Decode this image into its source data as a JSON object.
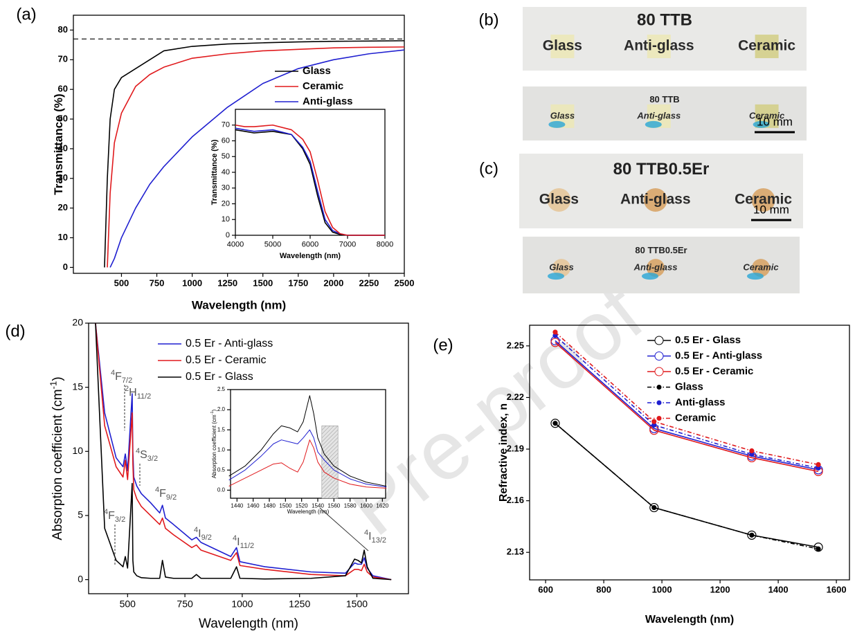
{
  "watermark": "Pre-proof",
  "chart_data": [
    {
      "type": "line",
      "panel": "(a)",
      "xlabel": "Wavelength (nm)",
      "ylabel": "Transmittance (%)",
      "xlim": [
        160,
        2500
      ],
      "ylim": [
        -2,
        85
      ],
      "xticks": [
        500,
        750,
        1000,
        1250,
        1500,
        1750,
        2000,
        2250,
        2500
      ],
      "yticks": [
        0,
        10,
        20,
        30,
        40,
        50,
        60,
        70,
        80
      ],
      "ref_line": 77,
      "legend": true,
      "x": [
        380,
        400,
        420,
        450,
        500,
        600,
        700,
        800,
        1000,
        1250,
        1500,
        1750,
        2000,
        2250,
        2500
      ],
      "series": [
        {
          "name": "Glass",
          "color": "#000000",
          "values": [
            0,
            30,
            50,
            60,
            64,
            67,
            70,
            73,
            74.5,
            75.3,
            75.7,
            76,
            76.2,
            76.3,
            76.4
          ]
        },
        {
          "name": "Ceramic",
          "color": "#e0191c",
          "values": [
            null,
            0,
            25,
            42,
            52,
            61,
            65,
            67.5,
            70.5,
            72,
            73,
            73.5,
            74,
            74.2,
            74.3
          ]
        },
        {
          "name": "Anti-glass",
          "color": "#1f1fd0",
          "values": [
            null,
            null,
            0,
            3,
            10,
            20,
            28,
            34,
            44,
            54,
            62,
            67,
            70,
            72,
            73.3
          ]
        }
      ]
    },
    {
      "type": "line",
      "xlabel": "Wavelength (nm)",
      "ylabel": "Transmittance (%)",
      "xlim": [
        4000,
        8000
      ],
      "ylim": [
        0,
        80
      ],
      "xticks": [
        4000,
        5000,
        6000,
        7000,
        8000
      ],
      "yticks": [
        0,
        10,
        20,
        30,
        40,
        50,
        60,
        70
      ],
      "x": [
        4000,
        4250,
        4500,
        5000,
        5500,
        5800,
        6000,
        6200,
        6400,
        6600,
        6800,
        7000,
        8000
      ],
      "series": [
        {
          "color": "#000000",
          "values": [
            67,
            66,
            65,
            66,
            64,
            55,
            45,
            25,
            8,
            2,
            0.5,
            0,
            0
          ]
        },
        {
          "color": "#1f1fd0",
          "values": [
            68,
            67,
            66,
            67,
            64,
            56,
            47,
            28,
            10,
            3,
            1,
            0,
            0
          ]
        },
        {
          "color": "#e0191c",
          "values": [
            70,
            69,
            69,
            70,
            67,
            61,
            53,
            35,
            15,
            5,
            1,
            0,
            0
          ]
        }
      ]
    },
    {
      "type": "line",
      "panel": "(d)",
      "xlabel": "Wavelength (nm)",
      "ylabel": "Absorption coefficient (cm",
      "ylabel_sup": "-1",
      "ylabel_end": ")",
      "xlim": [
        330,
        1725
      ],
      "ylim": [
        -1.1,
        20
      ],
      "xticks": [
        500,
        750,
        1000,
        1250,
        1500
      ],
      "yticks": [
        0,
        5,
        10,
        15,
        20
      ],
      "legend": true,
      "x": [
        360,
        400,
        450,
        480,
        490,
        500,
        520,
        523,
        527,
        540,
        560,
        600,
        640,
        652,
        665,
        700,
        780,
        800,
        820,
        950,
        975,
        990,
        1100,
        1300,
        1450,
        1490,
        1505,
        1520,
        1532,
        1545,
        1570,
        1650
      ],
      "series": [
        {
          "name": "0.5 Er - Anti-glass",
          "color": "#1f1fd0",
          "values": [
            20,
            13,
            9.5,
            8.8,
            9.8,
            8.5,
            14.5,
            10,
            8,
            7.3,
            6.7,
            6,
            5.2,
            5.8,
            4.8,
            4.3,
            3.1,
            3.3,
            2.9,
            1.8,
            2.5,
            1.4,
            1.0,
            0.6,
            0.5,
            1.3,
            1.2,
            1.2,
            1.7,
            0.9,
            0.3,
            0
          ]
        },
        {
          "name": "0.5 Er - Ceramic",
          "color": "#e0191c",
          "values": [
            20,
            12,
            8.8,
            8.0,
            9.3,
            7.8,
            13,
            9,
            7,
            6.3,
            5.7,
            5,
            4.3,
            4.8,
            4.0,
            3.5,
            2.5,
            2.7,
            2.3,
            1.5,
            2.1,
            1.1,
            0.8,
            0.4,
            0.3,
            0.8,
            0.8,
            0.7,
            1.2,
            0.6,
            0.2,
            0
          ]
        },
        {
          "name": "0.5 Er - Glass",
          "color": "#000000",
          "values": [
            20,
            4,
            1.5,
            1,
            1.8,
            0.9,
            7.5,
            1.5,
            0.6,
            0.3,
            0.15,
            0.1,
            0.1,
            1.5,
            0.2,
            0.1,
            0.1,
            0.4,
            0.1,
            0.1,
            1.0,
            0.1,
            0.05,
            0.1,
            0.3,
            1.6,
            1.5,
            1.3,
            2.3,
            1.0,
            0.1,
            0
          ]
        }
      ],
      "annotations": [
        {
          "sup": "4",
          "main": "F",
          "sub": "7/2"
        },
        {
          "sup": "2",
          "main": "H",
          "sub": "11/2"
        },
        {
          "sup": "4",
          "main": "S",
          "sub": "3/2"
        },
        {
          "sup": "4",
          "main": "F",
          "sub": "9/2"
        },
        {
          "sup": "4",
          "main": "F",
          "sub": "3/2"
        },
        {
          "sup": "4",
          "main": "I",
          "sub": "9/2"
        },
        {
          "sup": "4",
          "main": "I",
          "sub": "11/2"
        },
        {
          "sup": "4",
          "main": "I",
          "sub": "13/2"
        }
      ]
    },
    {
      "type": "line",
      "xlabel": "Wavelength (nm)",
      "ylabel": "Absorption coefficient (cm",
      "ylabel_sup": "-1",
      "ylabel_end": ")",
      "xlim": [
        1432,
        1624
      ],
      "ylim": [
        -0.2,
        2.5
      ],
      "xticks": [
        1440,
        1460,
        1480,
        1500,
        1520,
        1540,
        1560,
        1580,
        1600,
        1620
      ],
      "yticks": [
        {
          "value": 0,
          "label": "0.0"
        },
        0.5,
        {
          "value": 1,
          "label": "1.0"
        },
        1.5,
        {
          "value": 2,
          "label": "2.0"
        },
        2.5
      ],
      "shaded": {
        "x": [
          1545,
          1565
        ],
        "y": [
          -0.2,
          1.6
        ]
      },
      "x": [
        1430,
        1450,
        1470,
        1485,
        1495,
        1505,
        1515,
        1522,
        1530,
        1535,
        1540,
        1548,
        1560,
        1580,
        1600,
        1625
      ],
      "series": [
        {
          "color": "#000000",
          "values": [
            0.35,
            0.6,
            1.0,
            1.4,
            1.6,
            1.55,
            1.45,
            1.7,
            2.35,
            1.9,
            1.3,
            0.9,
            0.6,
            0.35,
            0.2,
            0.1
          ]
        },
        {
          "color": "#1f1fd0",
          "values": [
            0.25,
            0.5,
            0.85,
            1.15,
            1.25,
            1.2,
            1.15,
            1.3,
            1.5,
            1.3,
            0.95,
            0.75,
            0.5,
            0.28,
            0.15,
            0.08
          ]
        },
        {
          "color": "#e0191c",
          "values": [
            0.1,
            0.3,
            0.5,
            0.65,
            0.68,
            0.55,
            0.45,
            0.7,
            1.25,
            1.05,
            0.7,
            0.45,
            0.3,
            0.15,
            0.08,
            0.05
          ]
        }
      ]
    },
    {
      "type": "line",
      "panel": "(e)",
      "xlabel": "Wavelength (nm)",
      "ylabel": "Refractive index, n",
      "xlim": [
        545,
        1645
      ],
      "ylim": [
        2.114,
        2.262
      ],
      "xticks": [
        600,
        800,
        1000,
        1200,
        1400,
        1600
      ],
      "yticks": [
        2.13,
        2.16,
        2.19,
        2.22,
        2.25
      ],
      "legend": true,
      "x": [
        633,
        973,
        1309,
        1538
      ],
      "series": [
        {
          "name": "0.5 Er - Glass",
          "color": "#000000",
          "marker": "open",
          "values": [
            2.205,
            2.156,
            2.14,
            2.133
          ]
        },
        {
          "name": "0.5 Er - Anti-glass",
          "color": "#1f1fd0",
          "marker": "open",
          "values": [
            2.253,
            2.202,
            2.186,
            2.178
          ]
        },
        {
          "name": "0.5 Er - Ceramic",
          "color": "#e0191c",
          "marker": "open",
          "values": [
            2.252,
            2.201,
            2.185,
            2.177
          ]
        },
        {
          "name": "Glass",
          "color": "#000000",
          "marker": "dot",
          "dashed": true,
          "values": [
            2.205,
            2.156,
            2.14,
            2.132
          ]
        },
        {
          "name": "Anti-glass",
          "color": "#1f1fd0",
          "marker": "dot",
          "dashed": true,
          "values": [
            2.256,
            2.204,
            2.187,
            2.179
          ]
        },
        {
          "name": "Ceramic",
          "color": "#e0191c",
          "marker": "dot",
          "dashed": true,
          "values": [
            2.258,
            2.206,
            2.189,
            2.181
          ]
        }
      ]
    }
  ],
  "photos": [
    {
      "panel": "(b)",
      "title": "80 TTB",
      "samples": [
        "Glass",
        "Anti-glass",
        "Ceramic"
      ],
      "reflection_title": "80 TTB",
      "reflection_samples": [
        "Glass",
        "Anti-glass",
        "Ceramic"
      ],
      "scale_bar": "10 mm"
    },
    {
      "panel": "(c)",
      "title": "80 TTB0.5Er",
      "samples": [
        "Glass",
        "Anti-glass",
        "Ceramic"
      ],
      "reflection_title": "80 TTB0.5Er",
      "reflection_samples": [
        "Glass",
        "Anti-glass",
        "Ceramic"
      ],
      "scale_bar": "10 mm"
    }
  ]
}
